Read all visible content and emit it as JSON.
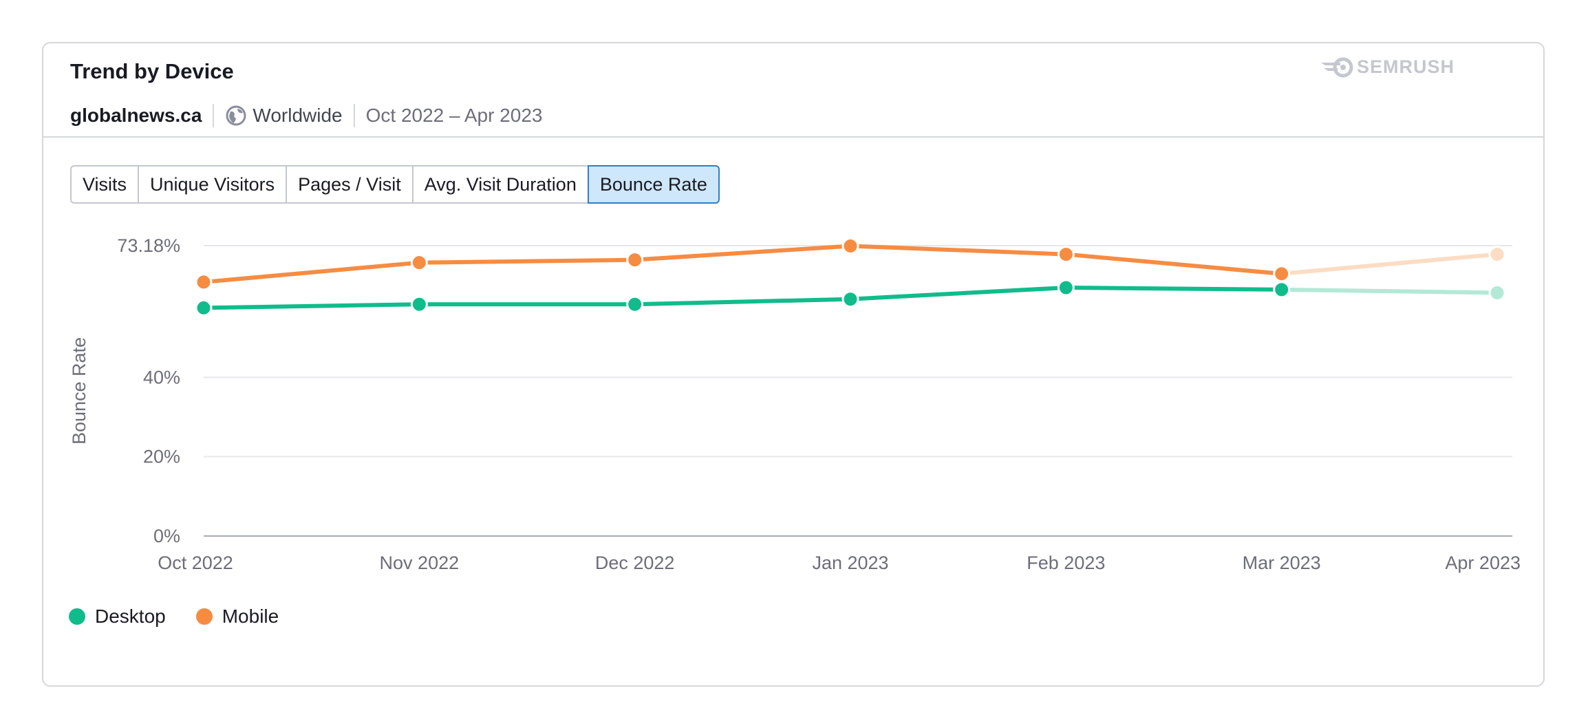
{
  "header": {
    "title": "Trend by Device",
    "brand": "SEMRUSH",
    "domain": "globalnews.ca",
    "region": "Worldwide",
    "date_range": "Oct 2022 – Apr 2023"
  },
  "tabs": [
    {
      "label": "Visits",
      "active": false
    },
    {
      "label": "Unique Visitors",
      "active": false
    },
    {
      "label": "Pages / Visit",
      "active": false
    },
    {
      "label": "Avg. Visit Duration",
      "active": false
    },
    {
      "label": "Bounce Rate",
      "active": true
    }
  ],
  "legend": [
    {
      "name": "Desktop",
      "color": "#10bc8c"
    },
    {
      "name": "Mobile",
      "color": "#f68c42"
    }
  ],
  "chart_data": {
    "type": "line",
    "title": "Trend by Device",
    "xlabel": "",
    "ylabel": "Bounce Rate",
    "ylim": [
      0,
      73.18
    ],
    "y_ticks": [
      {
        "value": 0,
        "label": "0%"
      },
      {
        "value": 20,
        "label": "20%"
      },
      {
        "value": 40,
        "label": "40%"
      },
      {
        "value": 73.18,
        "label": "73.18%"
      }
    ],
    "categories": [
      "Oct 2022",
      "Nov 2022",
      "Dec 2022",
      "Jan 2023",
      "Feb 2023",
      "Mar 2023",
      "Apr 2023"
    ],
    "projected_from_index": 5,
    "series": [
      {
        "name": "Desktop",
        "color": "#10bc8c",
        "projected_color": "#b3e9d6",
        "values": [
          57.5,
          58.4,
          58.4,
          59.7,
          62.6,
          62.1,
          61.3
        ]
      },
      {
        "name": "Mobile",
        "color": "#f68c42",
        "projected_color": "#fcdcc3",
        "values": [
          64.0,
          68.9,
          69.6,
          73.1,
          71.0,
          66.1,
          71.0
        ]
      }
    ]
  }
}
